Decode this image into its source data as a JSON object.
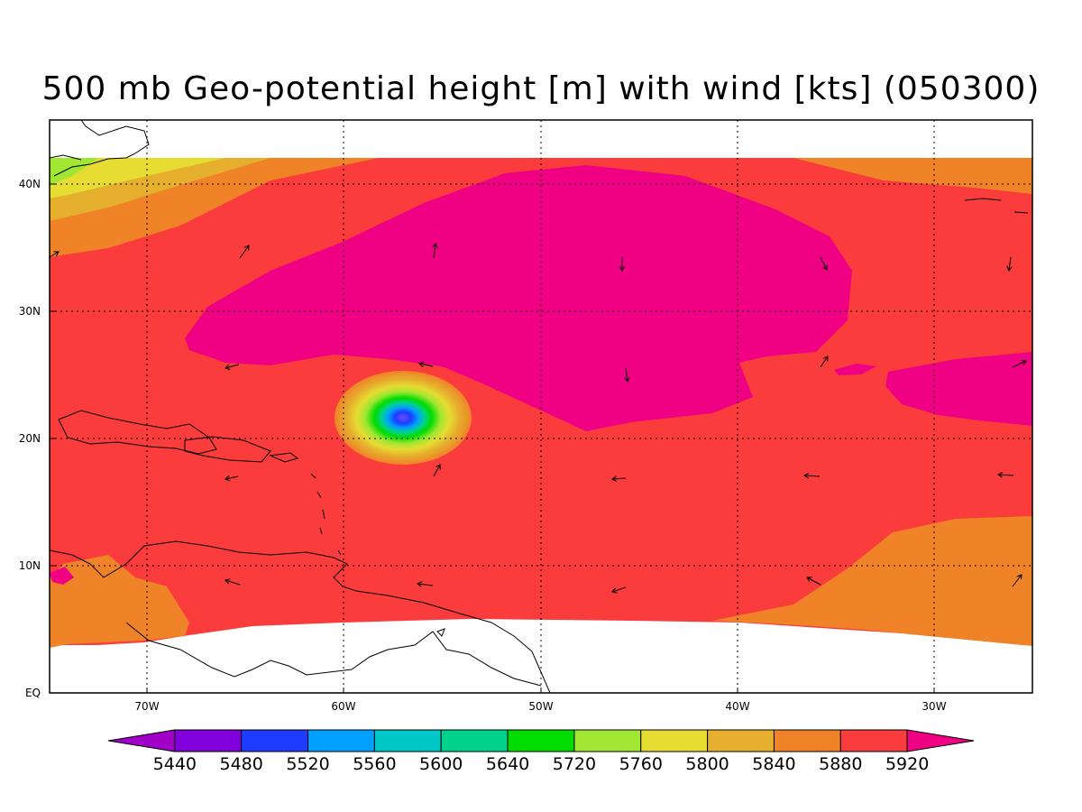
{
  "title": "500 mb Geo-potential height [m] with wind [kts] (050300)",
  "axes": {
    "lat_labels": [
      "40N",
      "30N",
      "20N",
      "10N",
      "EQ"
    ],
    "lon_labels": [
      "70W",
      "60W",
      "50W",
      "40W",
      "30W"
    ]
  },
  "colorbar": {
    "levels": [
      "5440",
      "5480",
      "5520",
      "5560",
      "5600",
      "5640",
      "5720",
      "5760",
      "5800",
      "5840",
      "5880",
      "5920"
    ],
    "colors": [
      "#a000c8",
      "#8200dc",
      "#1e3cff",
      "#00a0ff",
      "#00c8c8",
      "#00d28c",
      "#00dc00",
      "#a0e632",
      "#e6dc32",
      "#e6af2d",
      "#f08228",
      "#fa3c3c",
      "#f00082"
    ]
  },
  "map": {
    "land_outline_color": "#000000",
    "grid_style": "dotted"
  }
}
